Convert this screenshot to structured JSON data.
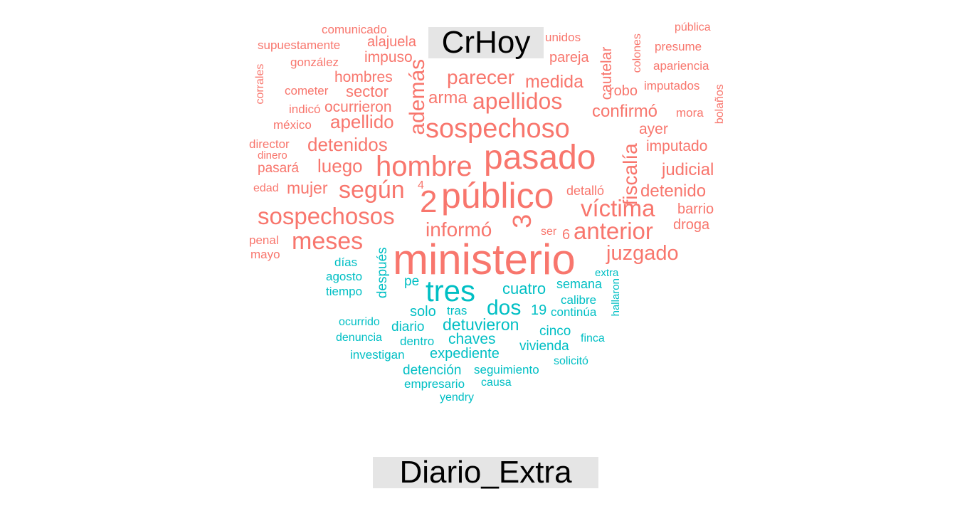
{
  "chart_data": {
    "type": "wordcloud",
    "groups": [
      {
        "name": "CrHoy",
        "color": "#f8766d"
      },
      {
        "name": "Diario_Extra",
        "color": "#00bfc4"
      }
    ],
    "words": [
      {
        "text": "ministerio",
        "group": "CrHoy"
      },
      {
        "text": "público",
        "group": "CrHoy"
      },
      {
        "text": "pasado",
        "group": "CrHoy"
      },
      {
        "text": "sospechoso",
        "group": "CrHoy"
      },
      {
        "text": "hombre",
        "group": "CrHoy"
      },
      {
        "text": "sospechosos",
        "group": "CrHoy"
      },
      {
        "text": "2",
        "group": "CrHoy"
      },
      {
        "text": "3",
        "group": "CrHoy"
      },
      {
        "text": "víctima",
        "group": "CrHoy"
      },
      {
        "text": "según",
        "group": "CrHoy"
      },
      {
        "text": "anterior",
        "group": "CrHoy"
      },
      {
        "text": "meses",
        "group": "CrHoy"
      },
      {
        "text": "apellidos",
        "group": "CrHoy"
      },
      {
        "text": "además",
        "group": "CrHoy"
      },
      {
        "text": "informó",
        "group": "CrHoy"
      },
      {
        "text": "juzgado",
        "group": "CrHoy"
      },
      {
        "text": "fiscalía",
        "group": "CrHoy"
      },
      {
        "text": "parecer",
        "group": "CrHoy"
      },
      {
        "text": "apellido",
        "group": "CrHoy"
      },
      {
        "text": "detenidos",
        "group": "CrHoy"
      },
      {
        "text": "luego",
        "group": "CrHoy"
      },
      {
        "text": "medida",
        "group": "CrHoy"
      },
      {
        "text": "confirmó",
        "group": "CrHoy"
      },
      {
        "text": "mujer",
        "group": "CrHoy"
      },
      {
        "text": "arma",
        "group": "CrHoy"
      },
      {
        "text": "judicial",
        "group": "CrHoy"
      },
      {
        "text": "detenido",
        "group": "CrHoy"
      },
      {
        "text": "sector",
        "group": "CrHoy"
      },
      {
        "text": "hombres",
        "group": "CrHoy"
      },
      {
        "text": "ocurrieron",
        "group": "CrHoy"
      },
      {
        "text": "impuso",
        "group": "CrHoy"
      },
      {
        "text": "alajuela",
        "group": "CrHoy"
      },
      {
        "text": "cautelar",
        "group": "CrHoy"
      },
      {
        "text": "imputado",
        "group": "CrHoy"
      },
      {
        "text": "ayer",
        "group": "CrHoy"
      },
      {
        "text": "robo",
        "group": "CrHoy"
      },
      {
        "text": "pareja",
        "group": "CrHoy"
      },
      {
        "text": "barrio",
        "group": "CrHoy"
      },
      {
        "text": "droga",
        "group": "CrHoy"
      },
      {
        "text": "pasará",
        "group": "CrHoy"
      },
      {
        "text": "detalló",
        "group": "CrHoy"
      },
      {
        "text": "comunicado",
        "group": "CrHoy"
      },
      {
        "text": "supuestamente",
        "group": "CrHoy"
      },
      {
        "text": "gonzález",
        "group": "CrHoy"
      },
      {
        "text": "corrales",
        "group": "CrHoy"
      },
      {
        "text": "cometer",
        "group": "CrHoy"
      },
      {
        "text": "indicó",
        "group": "CrHoy"
      },
      {
        "text": "méxico",
        "group": "CrHoy"
      },
      {
        "text": "director",
        "group": "CrHoy"
      },
      {
        "text": "dinero",
        "group": "CrHoy"
      },
      {
        "text": "edad",
        "group": "CrHoy"
      },
      {
        "text": "penal",
        "group": "CrHoy"
      },
      {
        "text": "mayo",
        "group": "CrHoy"
      },
      {
        "text": "4",
        "group": "CrHoy"
      },
      {
        "text": "6",
        "group": "CrHoy"
      },
      {
        "text": "ser",
        "group": "CrHoy"
      },
      {
        "text": "unidos",
        "group": "CrHoy"
      },
      {
        "text": "colones",
        "group": "CrHoy"
      },
      {
        "text": "pública",
        "group": "CrHoy"
      },
      {
        "text": "presume",
        "group": "CrHoy"
      },
      {
        "text": "apariencia",
        "group": "CrHoy"
      },
      {
        "text": "imputados",
        "group": "CrHoy"
      },
      {
        "text": "bolaños",
        "group": "CrHoy"
      },
      {
        "text": "mora",
        "group": "CrHoy"
      },
      {
        "text": "tres",
        "group": "Diario_Extra"
      },
      {
        "text": "dos",
        "group": "Diario_Extra"
      },
      {
        "text": "detuvieron",
        "group": "Diario_Extra"
      },
      {
        "text": "cuatro",
        "group": "Diario_Extra"
      },
      {
        "text": "chaves",
        "group": "Diario_Extra"
      },
      {
        "text": "expediente",
        "group": "Diario_Extra"
      },
      {
        "text": "solo",
        "group": "Diario_Extra"
      },
      {
        "text": "19",
        "group": "Diario_Extra"
      },
      {
        "text": "después",
        "group": "Diario_Extra"
      },
      {
        "text": "vivienda",
        "group": "Diario_Extra"
      },
      {
        "text": "cinco",
        "group": "Diario_Extra"
      },
      {
        "text": "detención",
        "group": "Diario_Extra"
      },
      {
        "text": "diario",
        "group": "Diario_Extra"
      },
      {
        "text": "semana",
        "group": "Diario_Extra"
      },
      {
        "text": "seguimiento",
        "group": "Diario_Extra"
      },
      {
        "text": "pe",
        "group": "Diario_Extra"
      },
      {
        "text": "investigan",
        "group": "Diario_Extra"
      },
      {
        "text": "empresario",
        "group": "Diario_Extra"
      },
      {
        "text": "calibre",
        "group": "Diario_Extra"
      },
      {
        "text": "continúa",
        "group": "Diario_Extra"
      },
      {
        "text": "dentro",
        "group": "Diario_Extra"
      },
      {
        "text": "agosto",
        "group": "Diario_Extra"
      },
      {
        "text": "tiempo",
        "group": "Diario_Extra"
      },
      {
        "text": "días",
        "group": "Diario_Extra"
      },
      {
        "text": "tras",
        "group": "Diario_Extra"
      },
      {
        "text": "ocurrido",
        "group": "Diario_Extra"
      },
      {
        "text": "denuncia",
        "group": "Diario_Extra"
      },
      {
        "text": "causa",
        "group": "Diario_Extra"
      },
      {
        "text": "solicitó",
        "group": "Diario_Extra"
      },
      {
        "text": "finca",
        "group": "Diario_Extra"
      },
      {
        "text": "extra",
        "group": "Diario_Extra"
      },
      {
        "text": "hallaron",
        "group": "Diario_Extra"
      },
      {
        "text": "yendry",
        "group": "Diario_Extra"
      }
    ]
  }
}
